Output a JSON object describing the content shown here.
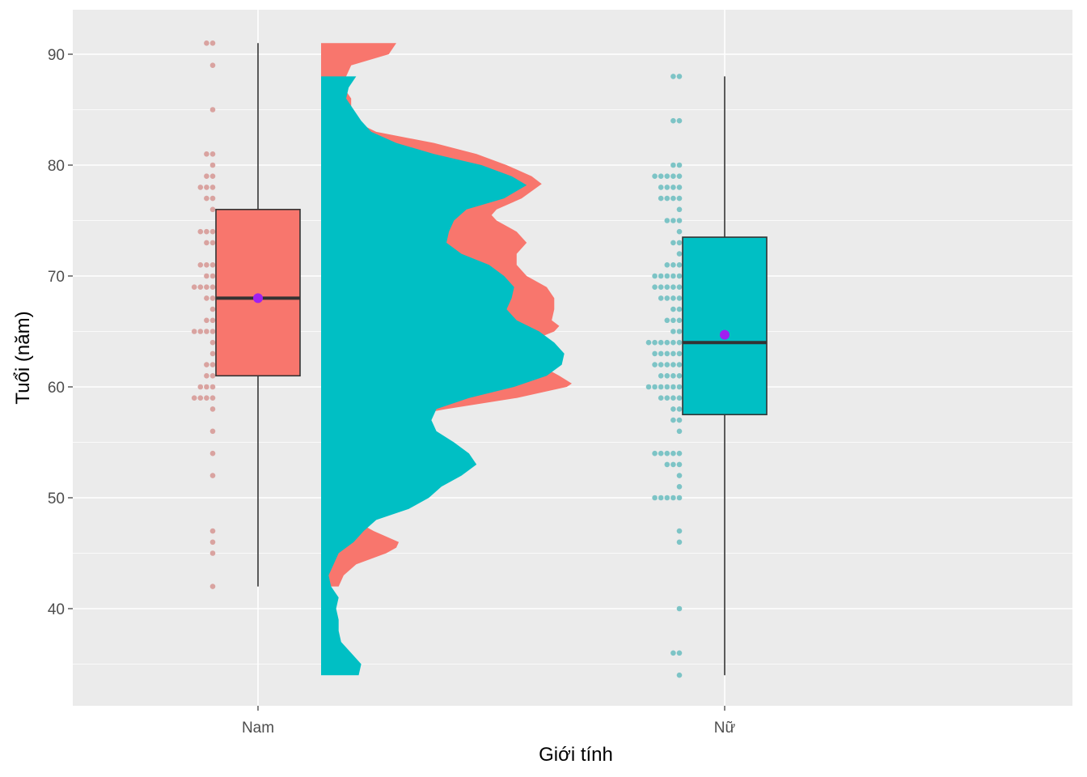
{
  "chart_data": {
    "type": "raincloud",
    "xlabel": "Giới tính",
    "ylabel": "Tuổi (năm)",
    "ylim": [
      31,
      93
    ],
    "yticks": [
      40,
      50,
      60,
      70,
      80,
      90
    ],
    "grid": true,
    "legend": "none",
    "categories": [
      "Nam",
      "Nữ"
    ],
    "groups": [
      {
        "name": "Nam",
        "color": "#F8766D",
        "box": {
          "whisker_low": 42,
          "q1": 61,
          "median": 68,
          "q3": 76,
          "whisker_high": 91,
          "mean": 68
        },
        "points": [
          {
            "v": 91,
            "n": 2
          },
          {
            "v": 89,
            "n": 1
          },
          {
            "v": 85,
            "n": 1
          },
          {
            "v": 81,
            "n": 2
          },
          {
            "v": 80,
            "n": 1
          },
          {
            "v": 79,
            "n": 2
          },
          {
            "v": 78,
            "n": 3
          },
          {
            "v": 77,
            "n": 2
          },
          {
            "v": 76,
            "n": 1
          },
          {
            "v": 74,
            "n": 3
          },
          {
            "v": 73,
            "n": 2
          },
          {
            "v": 71,
            "n": 3
          },
          {
            "v": 70,
            "n": 2
          },
          {
            "v": 69,
            "n": 4
          },
          {
            "v": 68,
            "n": 2
          },
          {
            "v": 67,
            "n": 1
          },
          {
            "v": 66,
            "n": 2
          },
          {
            "v": 65,
            "n": 4
          },
          {
            "v": 64,
            "n": 1
          },
          {
            "v": 63,
            "n": 1
          },
          {
            "v": 62,
            "n": 2
          },
          {
            "v": 61,
            "n": 2
          },
          {
            "v": 60,
            "n": 3
          },
          {
            "v": 59,
            "n": 4
          },
          {
            "v": 58,
            "n": 1
          },
          {
            "v": 56,
            "n": 1
          },
          {
            "v": 54,
            "n": 1
          },
          {
            "v": 52,
            "n": 1
          },
          {
            "v": 47,
            "n": 1
          },
          {
            "v": 46,
            "n": 1
          },
          {
            "v": 45,
            "n": 1
          },
          {
            "v": 42,
            "n": 1
          }
        ],
        "density": [
          [
            91,
            0.3
          ],
          [
            90,
            0.27
          ],
          [
            89,
            0.12
          ],
          [
            88,
            0.1
          ],
          [
            87,
            0.09
          ],
          [
            86,
            0.12
          ],
          [
            85,
            0.12
          ],
          [
            84,
            0.13
          ],
          [
            83,
            0.22
          ],
          [
            82,
            0.45
          ],
          [
            81,
            0.62
          ],
          [
            80,
            0.74
          ],
          [
            79,
            0.84
          ],
          [
            78.3,
            0.88
          ],
          [
            77,
            0.8
          ],
          [
            76,
            0.7
          ],
          [
            75.5,
            0.68
          ],
          [
            75,
            0.7
          ],
          [
            74,
            0.78
          ],
          [
            73,
            0.82
          ],
          [
            72,
            0.78
          ],
          [
            71,
            0.78
          ],
          [
            70,
            0.82
          ],
          [
            69,
            0.9
          ],
          [
            68,
            0.93
          ],
          [
            67,
            0.93
          ],
          [
            66,
            0.92
          ],
          [
            65.5,
            0.95
          ],
          [
            65,
            0.93
          ],
          [
            64,
            0.82
          ],
          [
            63,
            0.8
          ],
          [
            62,
            0.87
          ],
          [
            61,
            0.95
          ],
          [
            60.3,
            1.0
          ],
          [
            60,
            0.98
          ],
          [
            59,
            0.78
          ],
          [
            58,
            0.5
          ],
          [
            57,
            0.25
          ],
          [
            56,
            0.22
          ],
          [
            55,
            0.2
          ],
          [
            54,
            0.19
          ],
          [
            53,
            0.18
          ],
          [
            52,
            0.14
          ],
          [
            51,
            0.09
          ],
          [
            50,
            0.07
          ],
          [
            49,
            0.07
          ],
          [
            48,
            0.13
          ],
          [
            47,
            0.21
          ],
          [
            46,
            0.31
          ],
          [
            45.5,
            0.3
          ],
          [
            45,
            0.26
          ],
          [
            44,
            0.14
          ],
          [
            43,
            0.09
          ],
          [
            42,
            0.07
          ]
        ]
      },
      {
        "name": "Nữ",
        "color": "#00BFC4",
        "box": {
          "whisker_low": 34,
          "q1": 57.5,
          "median": 64,
          "q3": 73.5,
          "whisker_high": 88,
          "mean": 64.7
        },
        "points": [
          {
            "v": 88,
            "n": 2
          },
          {
            "v": 84,
            "n": 2
          },
          {
            "v": 80,
            "n": 2
          },
          {
            "v": 79,
            "n": 5
          },
          {
            "v": 78,
            "n": 4
          },
          {
            "v": 77,
            "n": 4
          },
          {
            "v": 76,
            "n": 1
          },
          {
            "v": 75,
            "n": 3
          },
          {
            "v": 74,
            "n": 1
          },
          {
            "v": 73,
            "n": 2
          },
          {
            "v": 72,
            "n": 1
          },
          {
            "v": 71,
            "n": 3
          },
          {
            "v": 70,
            "n": 5
          },
          {
            "v": 69,
            "n": 5
          },
          {
            "v": 68,
            "n": 4
          },
          {
            "v": 67,
            "n": 2
          },
          {
            "v": 66,
            "n": 3
          },
          {
            "v": 65,
            "n": 2
          },
          {
            "v": 64,
            "n": 6
          },
          {
            "v": 63,
            "n": 5
          },
          {
            "v": 62,
            "n": 5
          },
          {
            "v": 61,
            "n": 4
          },
          {
            "v": 60,
            "n": 6
          },
          {
            "v": 59,
            "n": 4
          },
          {
            "v": 58,
            "n": 2
          },
          {
            "v": 57,
            "n": 2
          },
          {
            "v": 56,
            "n": 1
          },
          {
            "v": 54,
            "n": 5
          },
          {
            "v": 53,
            "n": 3
          },
          {
            "v": 52,
            "n": 1
          },
          {
            "v": 51,
            "n": 1
          },
          {
            "v": 50,
            "n": 5
          },
          {
            "v": 47,
            "n": 1
          },
          {
            "v": 46,
            "n": 1
          },
          {
            "v": 40,
            "n": 1
          },
          {
            "v": 36,
            "n": 2
          },
          {
            "v": 34,
            "n": 1
          }
        ],
        "density": [
          [
            88,
            0.14
          ],
          [
            87,
            0.11
          ],
          [
            86,
            0.1
          ],
          [
            85,
            0.13
          ],
          [
            84,
            0.16
          ],
          [
            83,
            0.2
          ],
          [
            82,
            0.3
          ],
          [
            81,
            0.45
          ],
          [
            80,
            0.64
          ],
          [
            79,
            0.76
          ],
          [
            78.2,
            0.82
          ],
          [
            77,
            0.73
          ],
          [
            76,
            0.58
          ],
          [
            75,
            0.53
          ],
          [
            74,
            0.51
          ],
          [
            73,
            0.5
          ],
          [
            72,
            0.56
          ],
          [
            71,
            0.67
          ],
          [
            70,
            0.73
          ],
          [
            69,
            0.77
          ],
          [
            68,
            0.76
          ],
          [
            67,
            0.74
          ],
          [
            66,
            0.78
          ],
          [
            65,
            0.87
          ],
          [
            64,
            0.93
          ],
          [
            63,
            0.97
          ],
          [
            62,
            0.96
          ],
          [
            61,
            0.9
          ],
          [
            60,
            0.77
          ],
          [
            59,
            0.59
          ],
          [
            58,
            0.46
          ],
          [
            57,
            0.44
          ],
          [
            56,
            0.46
          ],
          [
            55,
            0.53
          ],
          [
            54,
            0.59
          ],
          [
            53,
            0.62
          ],
          [
            52,
            0.56
          ],
          [
            51,
            0.48
          ],
          [
            50,
            0.43
          ],
          [
            49,
            0.35
          ],
          [
            48,
            0.22
          ],
          [
            47,
            0.17
          ],
          [
            46,
            0.13
          ],
          [
            45,
            0.07
          ],
          [
            44,
            0.05
          ],
          [
            43,
            0.03
          ],
          [
            42,
            0.04
          ],
          [
            41,
            0.07
          ],
          [
            40,
            0.06
          ],
          [
            39,
            0.07
          ],
          [
            38,
            0.07
          ],
          [
            37,
            0.08
          ],
          [
            36,
            0.12
          ],
          [
            35,
            0.16
          ],
          [
            34,
            0.15
          ]
        ]
      }
    ],
    "mean_marker_color": "#A020F0"
  }
}
